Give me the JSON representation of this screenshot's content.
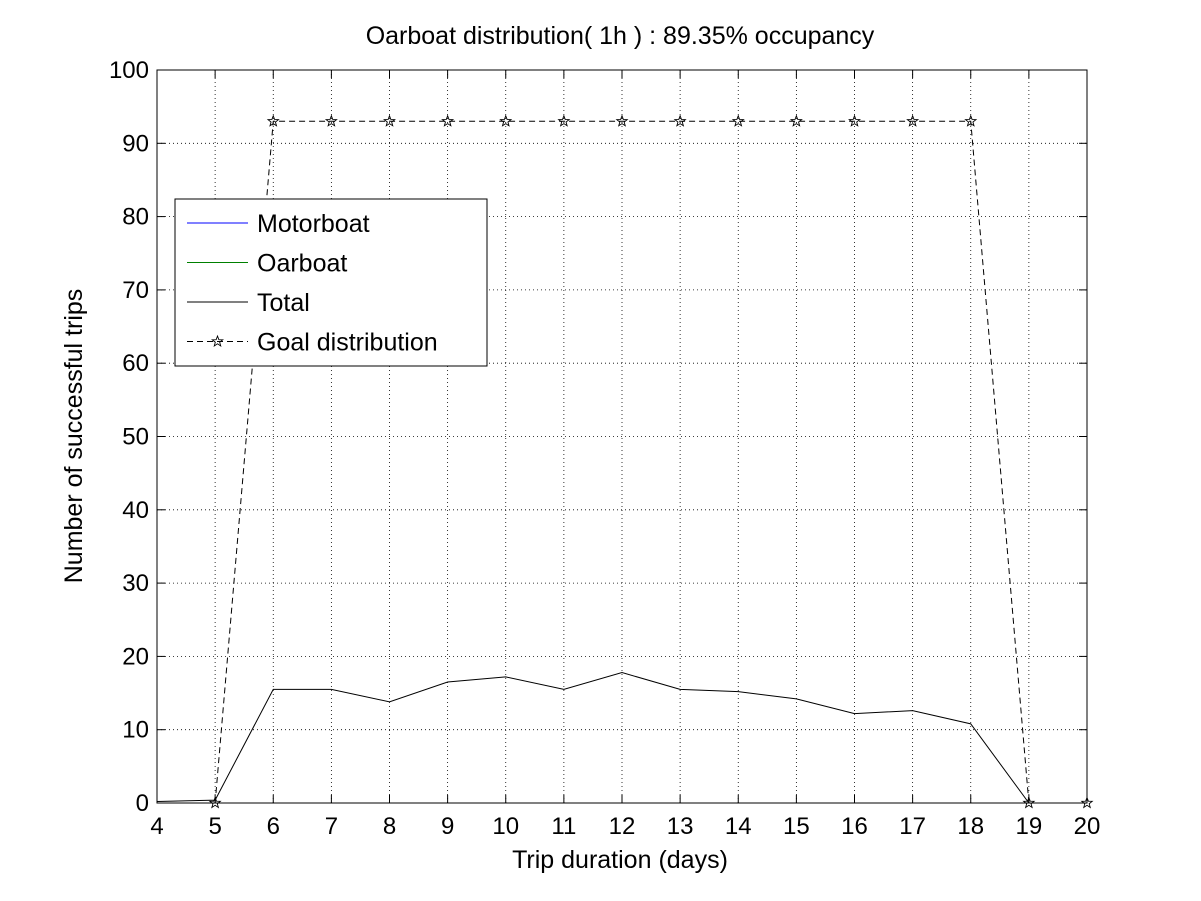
{
  "chart_data": {
    "type": "line",
    "title": "Oarboat distribution( 1h ) : 89.35% occupancy",
    "xlabel": "Trip duration (days)",
    "ylabel": "Number of successful trips",
    "xlim": [
      4,
      20
    ],
    "ylim": [
      0,
      100
    ],
    "x_ticks": [
      "4",
      "5",
      "6",
      "7",
      "8",
      "9",
      "10",
      "11",
      "12",
      "13",
      "14",
      "15",
      "16",
      "17",
      "18",
      "19",
      "20"
    ],
    "y_ticks": [
      "0",
      "10",
      "20",
      "30",
      "40",
      "50",
      "60",
      "70",
      "80",
      "90",
      "100"
    ],
    "grid": true,
    "legend_position": "upper-left",
    "series": [
      {
        "name": "Motorboat",
        "color": "#0000ff",
        "style": "solid",
        "marker": "none",
        "x": [
          4,
          5,
          6,
          7,
          8,
          9,
          10,
          11,
          12,
          13,
          14,
          15,
          16,
          17,
          18,
          19,
          20
        ],
        "y": [
          0,
          0,
          0,
          0,
          0,
          0,
          0,
          0,
          0,
          0,
          0,
          0,
          0,
          0,
          0,
          0,
          0
        ]
      },
      {
        "name": "Oarboat",
        "color": "#008000",
        "style": "solid",
        "marker": "none",
        "x": [
          4,
          5,
          6,
          7,
          8,
          9,
          10,
          11,
          12,
          13,
          14,
          15,
          16,
          17,
          18,
          19,
          20
        ],
        "y": [
          0,
          0,
          0,
          0,
          0,
          0,
          0,
          0,
          0,
          0,
          0,
          0,
          0,
          0,
          0,
          0,
          0
        ]
      },
      {
        "name": "Total",
        "color": "#000000",
        "style": "solid",
        "marker": "none",
        "x": [
          4,
          5,
          6,
          7,
          8,
          9,
          10,
          11,
          12,
          13,
          14,
          15,
          16,
          17,
          18,
          19,
          20
        ],
        "y": [
          0.2,
          0.4,
          15.5,
          15.5,
          13.8,
          16.5,
          17.2,
          15.5,
          17.8,
          15.5,
          15.2,
          14.2,
          12.2,
          12.6,
          10.8,
          0,
          0
        ]
      },
      {
        "name": "Goal distribution",
        "color": "#000000",
        "style": "dashed",
        "marker": "star",
        "x": [
          5,
          6,
          7,
          8,
          9,
          10,
          11,
          12,
          13,
          14,
          15,
          16,
          17,
          18,
          19,
          20
        ],
        "y": [
          0,
          93,
          93,
          93,
          93,
          93,
          93,
          93,
          93,
          93,
          93,
          93,
          93,
          93,
          0,
          0
        ]
      }
    ]
  }
}
